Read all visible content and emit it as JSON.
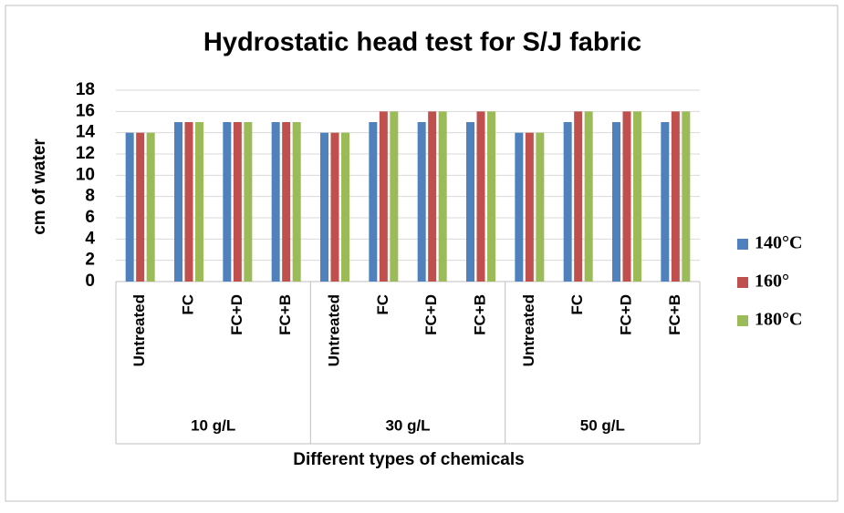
{
  "chart_data": {
    "type": "bar",
    "title": "Hydrostatic head test for S/J fabric",
    "x_label": "Different types of chemicals",
    "y_label": "cm of water",
    "categories": [
      "Untreated",
      "FC",
      "FC+D",
      "FC+B",
      "Untreated",
      "FC",
      "FC+D",
      "FC+B",
      "Untreated",
      "FC",
      "FC+D",
      "FC+B"
    ],
    "category_groups": [
      "10 g/L",
      "30 g/L",
      "50 g/L"
    ],
    "series": [
      {
        "name": "140°C",
        "color": "#4f81bd",
        "values": [
          14,
          15,
          15,
          15,
          14,
          15,
          15,
          15,
          14,
          15,
          15,
          15
        ]
      },
      {
        "name": "160°",
        "color": "#c0504d",
        "values": [
          14,
          15,
          15,
          15,
          14,
          16,
          16,
          16,
          14,
          16,
          16,
          16
        ]
      },
      {
        "name": "180°C",
        "color": "#9bbb59",
        "values": [
          14,
          15,
          15,
          15,
          14,
          16,
          16,
          16,
          14,
          16,
          16,
          16
        ]
      }
    ],
    "ylim": [
      0,
      18
    ],
    "yticks": [
      0,
      2,
      4,
      6,
      8,
      10,
      12,
      14,
      16,
      18
    ],
    "grid": true,
    "legend": "right"
  }
}
